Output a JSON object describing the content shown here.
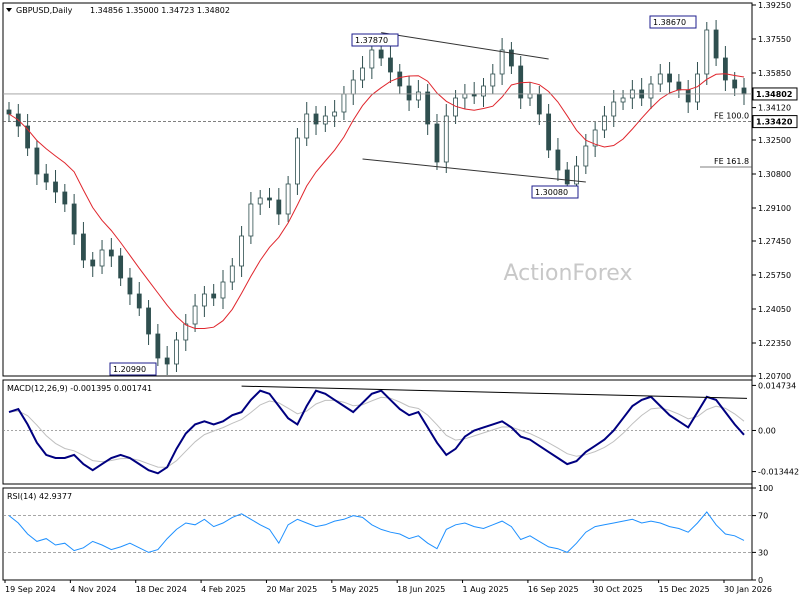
{
  "header": {
    "symbol": "GBPUSD,Daily",
    "ohlc": "1.34856 1.35000 1.34723 1.34802"
  },
  "chart_data": [
    {
      "type": "candlestick",
      "panel": "price",
      "title": "GBPUSD,Daily",
      "ylim": [
        1.207,
        1.3935
      ],
      "y_ticks": [
        "1.39250",
        "1.37550",
        "1.35850",
        "1.34120",
        "1.32500",
        "1.30800",
        "1.29100",
        "1.27450",
        "1.25750",
        "1.24050",
        "1.22350",
        "1.20700"
      ],
      "x_ticks": [
        "19 Sep 2024",
        "4 Nov 2024",
        "18 Dec 2024",
        "4 Feb 2025",
        "20 Mar 2025",
        "5 May 2025",
        "18 Jun 2025",
        "1 Aug 2025",
        "16 Sep 2025",
        "30 Oct 2025",
        "15 Dec 2025",
        "30 Jan 2026"
      ],
      "close_series": [
        1.338,
        1.332,
        1.321,
        1.308,
        1.304,
        1.299,
        1.293,
        1.278,
        1.265,
        1.262,
        1.27,
        1.267,
        1.256,
        1.248,
        1.241,
        1.228,
        1.216,
        1.213,
        1.225,
        1.233,
        1.242,
        1.248,
        1.246,
        1.254,
        1.262,
        1.277,
        1.293,
        1.296,
        1.295,
        1.288,
        1.303,
        1.326,
        1.338,
        1.333,
        1.337,
        1.339,
        1.348,
        1.355,
        1.361,
        1.37,
        1.366,
        1.359,
        1.352,
        1.345,
        1.349,
        1.333,
        1.314,
        1.337,
        1.346,
        1.348,
        1.347,
        1.352,
        1.358,
        1.37,
        1.362,
        1.346,
        1.348,
        1.338,
        1.32,
        1.31,
        1.303,
        1.312,
        1.322,
        1.33,
        1.337,
        1.344,
        1.346,
        1.35,
        1.346,
        1.353,
        1.358,
        1.354,
        1.35,
        1.344,
        1.358,
        1.38,
        1.366,
        1.355,
        1.351,
        1.348
      ],
      "price_labels": [
        {
          "text": "1.37870",
          "value": 1.3787
        },
        {
          "text": "1.38670",
          "value": 1.3867
        },
        {
          "text": "1.30080",
          "value": 1.3008
        },
        {
          "text": "1.20990",
          "value": 1.2099
        },
        {
          "text": "1.34802",
          "value": 1.34802
        },
        {
          "text": "1.33420",
          "value": 1.3342
        }
      ],
      "fe_levels": [
        {
          "text": "FE 100.0",
          "value": 1.3342
        },
        {
          "text": "FE 161.8",
          "value": 1.3115
        }
      ],
      "watermark": "ActionForex"
    },
    {
      "type": "line",
      "panel": "macd",
      "title": "MACD(12,26,9) -0.001395 0.001741",
      "ylim": [
        -0.0175,
        0.0165
      ],
      "y_ticks": [
        "0.014734",
        "0.00",
        "-0.013442"
      ],
      "macd_series": [
        0.006,
        0.007,
        0.002,
        -0.004,
        -0.008,
        -0.009,
        -0.009,
        -0.008,
        -0.011,
        -0.013,
        -0.011,
        -0.009,
        -0.008,
        -0.009,
        -0.011,
        -0.013,
        -0.014,
        -0.012,
        -0.006,
        -0.001,
        0.002,
        0.003,
        0.002,
        0.003,
        0.005,
        0.006,
        0.01,
        0.013,
        0.012,
        0.008,
        0.004,
        0.002,
        0.008,
        0.013,
        0.012,
        0.01,
        0.008,
        0.006,
        0.009,
        0.012,
        0.013,
        0.01,
        0.007,
        0.005,
        0.006,
        0.001,
        -0.004,
        -0.008,
        -0.006,
        -0.002,
        0.0,
        0.001,
        0.002,
        0.003,
        0.001,
        -0.002,
        -0.003,
        -0.005,
        -0.007,
        -0.009,
        -0.011,
        -0.01,
        -0.007,
        -0.005,
        -0.003,
        0.0,
        0.004,
        0.008,
        0.01,
        0.011,
        0.008,
        0.005,
        0.003,
        0.001,
        0.006,
        0.011,
        0.01,
        0.006,
        0.002,
        -0.0014
      ],
      "signal_label": "0.00"
    },
    {
      "type": "line",
      "panel": "rsi",
      "title": "RSI(14) 42.9377",
      "ylim": [
        0,
        100
      ],
      "y_ticks": [
        "100",
        "70",
        "30",
        "0"
      ],
      "rsi_series": [
        70,
        62,
        50,
        42,
        45,
        38,
        40,
        32,
        35,
        42,
        38,
        33,
        36,
        40,
        35,
        30,
        33,
        45,
        55,
        62,
        60,
        66,
        58,
        62,
        68,
        72,
        66,
        60,
        55,
        40,
        60,
        66,
        62,
        58,
        60,
        64,
        66,
        70,
        68,
        60,
        55,
        52,
        50,
        45,
        48,
        40,
        34,
        55,
        60,
        62,
        58,
        56,
        60,
        64,
        58,
        44,
        48,
        42,
        36,
        34,
        30,
        40,
        52,
        58,
        60,
        62,
        64,
        66,
        62,
        64,
        62,
        58,
        56,
        52,
        62,
        74,
        60,
        50,
        48,
        43
      ]
    }
  ]
}
